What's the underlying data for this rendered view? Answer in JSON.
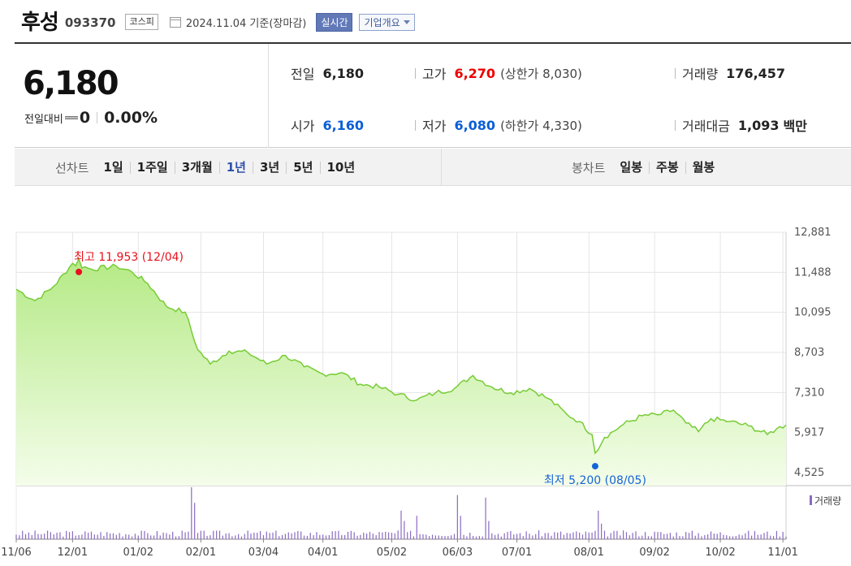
{
  "header": {
    "name": "후성",
    "code": "093370",
    "market": "코스피",
    "date_text": "2024.11.04 기준(장마감)",
    "realtime_label": "실시간",
    "company_info_label": "기업개요"
  },
  "quote": {
    "price": "6,180",
    "change_label": "전일대비",
    "change_value": "0",
    "change_percent": "0.00%",
    "prev_close": {
      "label": "전일",
      "value": "6,180"
    },
    "open": {
      "label": "시가",
      "value": "6,160"
    },
    "high": {
      "label": "고가",
      "value": "6,270",
      "limit_text": "(상한가 8,030)"
    },
    "low": {
      "label": "저가",
      "value": "6,080",
      "limit_text": "(하한가 4,330)"
    },
    "volume": {
      "label": "거래량",
      "value": "176,457"
    },
    "trade_value": {
      "label": "거래대금",
      "value": "1,093",
      "unit": "백만"
    }
  },
  "tabs": {
    "line_label": "선차트",
    "line_items": [
      "1일",
      "1주일",
      "3개월",
      "1년",
      "3년",
      "5년",
      "10년"
    ],
    "selected": "1년",
    "candle_label": "봉차트",
    "candle_items": [
      "일봉",
      "주봉",
      "월봉"
    ]
  },
  "colors": {
    "line": "#77cc35",
    "fill_top": "#b5ea86",
    "fill_bottom": "#f4fdea",
    "high_marker": "#e8101c",
    "low_marker": "#1565d8",
    "volume_bar": "#8a6ac2",
    "grid": "#e4e4e4",
    "selected_tab": "#2d51a8"
  },
  "chart_data": {
    "type": "area",
    "y_ticks": [
      "12,881",
      "11,488",
      "10,095",
      "8,703",
      "7,310",
      "5,917",
      "4,525"
    ],
    "ylim": [
      4525,
      12881
    ],
    "x_ticks": [
      "11/06",
      "12/01",
      "01/02",
      "02/01",
      "03/04",
      "04/01",
      "05/02",
      "06/03",
      "07/01",
      "08/01",
      "09/02",
      "10/02",
      "11/01"
    ],
    "x_tick_index": [
      0,
      18,
      39,
      59,
      79,
      98,
      120,
      141,
      160,
      183,
      204,
      225,
      245
    ],
    "total_points": 247,
    "price_anchors": [
      [
        0,
        10900
      ],
      [
        6,
        10500
      ],
      [
        12,
        11000
      ],
      [
        18,
        11800
      ],
      [
        24,
        11600
      ],
      [
        32,
        11700
      ],
      [
        37,
        11500
      ],
      [
        42,
        11100
      ],
      [
        48,
        10300
      ],
      [
        54,
        10100
      ],
      [
        58,
        8800
      ],
      [
        62,
        8300
      ],
      [
        68,
        8750
      ],
      [
        74,
        8700
      ],
      [
        80,
        8300
      ],
      [
        86,
        8600
      ],
      [
        92,
        8200
      ],
      [
        98,
        7950
      ],
      [
        104,
        8000
      ],
      [
        110,
        7600
      ],
      [
        116,
        7500
      ],
      [
        122,
        7250
      ],
      [
        128,
        7050
      ],
      [
        134,
        7300
      ],
      [
        140,
        7450
      ],
      [
        146,
        7900
      ],
      [
        152,
        7500
      ],
      [
        158,
        7300
      ],
      [
        164,
        7450
      ],
      [
        170,
        7100
      ],
      [
        176,
        6550
      ],
      [
        180,
        6300
      ],
      [
        184,
        5850
      ],
      [
        185,
        5200
      ],
      [
        188,
        5750
      ],
      [
        194,
        6200
      ],
      [
        200,
        6500
      ],
      [
        206,
        6550
      ],
      [
        210,
        6700
      ],
      [
        214,
        6250
      ],
      [
        218,
        5950
      ],
      [
        222,
        6400
      ],
      [
        228,
        6300
      ],
      [
        234,
        6150
      ],
      [
        240,
        5850
      ],
      [
        243,
        6050
      ],
      [
        246,
        6180
      ]
    ],
    "high": {
      "label": "최고 11,953 (12/04)",
      "value": 11953,
      "index": 20
    },
    "low": {
      "label": "최저 5,200 (08/05)",
      "value": 5200,
      "index": 185
    },
    "volume_legend": "거래량",
    "volume_spikes": [
      [
        56,
        1.0
      ],
      [
        57,
        0.7
      ],
      [
        123,
        0.55
      ],
      [
        124,
        0.35
      ],
      [
        128,
        0.45
      ],
      [
        141,
        0.85
      ],
      [
        142,
        0.45
      ],
      [
        150,
        0.8
      ],
      [
        151,
        0.35
      ],
      [
        186,
        0.55
      ],
      [
        187,
        0.3
      ]
    ]
  }
}
